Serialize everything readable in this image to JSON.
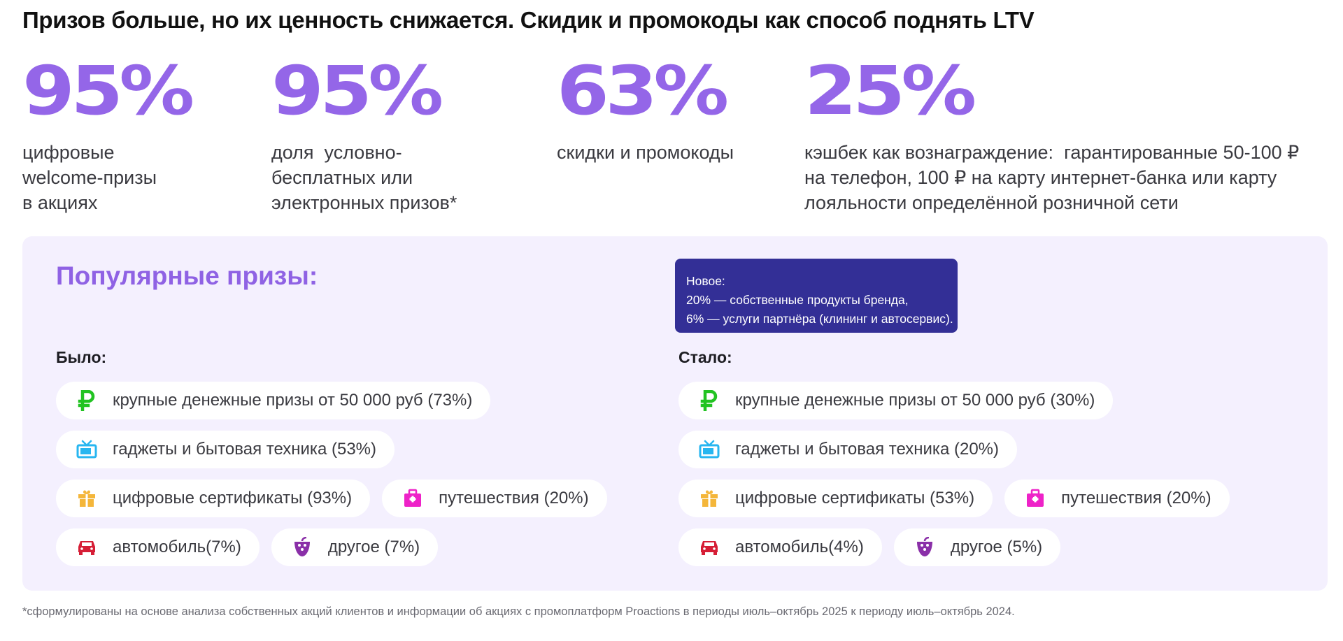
{
  "title": "Призов больше, но их ценность снижается. Скидик и промокоды как способ поднять LTV",
  "stats": [
    {
      "value": "95%",
      "desc": [
        "цифровые",
        "welcome-призы",
        "в акциях"
      ]
    },
    {
      "value": "95%",
      "desc": [
        "доля  условно-",
        "бесплатных или",
        "электронных призов*"
      ]
    },
    {
      "value": "63%",
      "desc": [
        "скидки и промокоды"
      ]
    },
    {
      "value": "25%",
      "desc": [
        "кэшбек как вознаграждение:  гарантированные 50-100 ₽",
        "на телефон, 100 ₽ на карту интернет-банка или карту",
        "лояльности определённой розничной сети"
      ]
    }
  ],
  "panel": {
    "title": "Популярные призы:",
    "callout": [
      "Новое:",
      "20% — собственные продукты бренда,",
      "6% — услуги партнёра (клининг и автосервис)."
    ],
    "before": {
      "label": "Было:",
      "items": {
        "money": "крупные денежные призы от 50 000 руб (73%)",
        "gadgets": "гаджеты и бытовая техника (53%)",
        "certificates": "цифровые сертификаты (93%)",
        "travel": "путешествия (20%)",
        "car": "автомобиль(7%)",
        "other": "другое (7%)"
      }
    },
    "after": {
      "label": "Стало:",
      "items": {
        "money": "крупные денежные призы от 50 000 руб (30%)",
        "gadgets": "гаджеты и бытовая техника (20%)",
        "certificates": "цифровые сертификаты (53%)",
        "travel": "путешествия (20%)",
        "car": "автомобиль(4%)",
        "other": "другое (5%)"
      }
    }
  },
  "icons": {
    "money": {
      "name": "ruble-icon",
      "color": "#22c322"
    },
    "gadgets": {
      "name": "tv-icon",
      "color": "#27b6f0"
    },
    "certificates": {
      "name": "gift-icon",
      "color": "#f4b63a"
    },
    "travel": {
      "name": "suitcase-icon",
      "color": "#ee22c8"
    },
    "car": {
      "name": "car-icon",
      "color": "#d61e36"
    },
    "other": {
      "name": "grapes-icon",
      "color": "#8a2fa8"
    }
  },
  "colors": {
    "accent": "#9466e8",
    "callout_bg": "#332f96",
    "panel_bg": "#f4f0fe"
  },
  "footnote": "*сформулированы на основе анализа собственных акций клиентов и информации об акциях с промоплатформ Proactions в периоды июль–октябрь 2025 к периоду июль–октябрь 2024."
}
